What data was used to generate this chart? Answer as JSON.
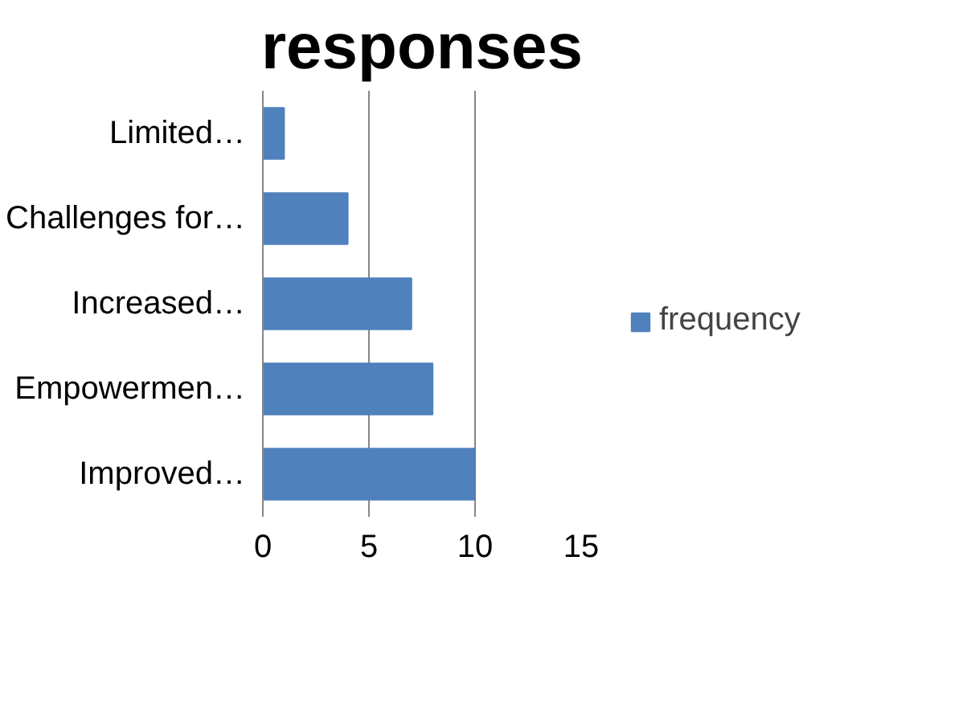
{
  "chart_data": {
    "type": "bar",
    "orientation": "horizontal",
    "title": "responses",
    "categories": [
      "Limited…",
      "Challenges for…",
      "Increased…",
      "Empowermen…",
      "Improved…"
    ],
    "series": [
      {
        "name": "frequency",
        "color": "#4f81bd",
        "values": [
          1,
          4,
          7,
          8,
          10
        ]
      }
    ],
    "xlim": [
      0,
      15
    ],
    "xticks": [
      0,
      5,
      10,
      15
    ],
    "grid": "x",
    "legend": "right"
  }
}
